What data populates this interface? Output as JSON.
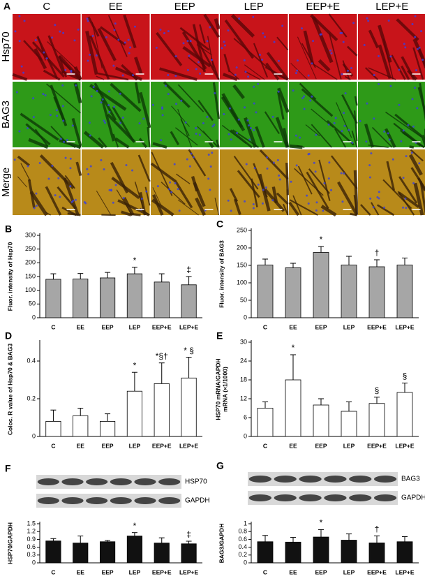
{
  "panel_a": {
    "panel": "A",
    "columns": [
      "C",
      "EE",
      "EEP",
      "LEP",
      "EEP+E",
      "LEP+E"
    ],
    "rows": [
      "Hsp70",
      "BAG3",
      "Merge"
    ]
  },
  "chart_data": [
    {
      "type": "bar",
      "panel": "B",
      "ylabel": [
        "Fluor. intensity of Hsp70"
      ],
      "categories": [
        "C",
        "EE",
        "EEP",
        "LEP",
        "EEP+E",
        "LEP+E"
      ],
      "values": [
        140,
        141,
        145,
        160,
        130,
        120
      ],
      "errors": [
        20,
        20,
        20,
        24,
        30,
        30
      ],
      "value_annotations": [
        null,
        null,
        null,
        "*",
        null,
        "‡"
      ],
      "color": "#a6a6a6",
      "ylim": [
        0,
        300
      ],
      "yticks": [
        0,
        50,
        100,
        150,
        200,
        250,
        300
      ]
    },
    {
      "type": "bar",
      "panel": "C",
      "ylabel": [
        "Fluor. intensity of BAG3"
      ],
      "categories": [
        "C",
        "EE",
        "EEP",
        "LEP",
        "EEP+E",
        "LEP+E"
      ],
      "values": [
        151,
        143,
        187,
        151,
        146,
        151
      ],
      "errors": [
        17,
        13,
        17,
        25,
        20,
        20
      ],
      "value_annotations": [
        null,
        null,
        "*",
        null,
        "†",
        null
      ],
      "color": "#a6a6a6",
      "ylim": [
        0,
        250
      ],
      "yticks": [
        0,
        50,
        100,
        150,
        200,
        250
      ]
    },
    {
      "type": "bar",
      "panel": "D",
      "ylabel": [
        "Coloc. R value of Hsp70 & BAG3"
      ],
      "categories": [
        "C",
        "EE",
        "EEP",
        "LEP",
        "EEP+E",
        "LEP+E"
      ],
      "values": [
        0.08,
        0.11,
        0.08,
        0.24,
        0.28,
        0.31
      ],
      "errors": [
        0.06,
        0.04,
        0.04,
        0.1,
        0.11,
        0.11
      ],
      "value_annotations": [
        null,
        null,
        null,
        "*",
        "*§†",
        "* §"
      ],
      "color": "#ffffff",
      "ylim": [
        0,
        0.5
      ],
      "yticks": [
        0,
        0.2,
        0.4
      ]
    },
    {
      "type": "bar",
      "panel": "E",
      "ylabel": [
        "HSP70 mRNA/GAPDH",
        "mRNA (×1/1000)"
      ],
      "categories": [
        "C",
        "EE",
        "EEP",
        "LEP",
        "EEP+E",
        "LEP+E"
      ],
      "values": [
        9,
        18,
        10,
        8,
        10.5,
        14
      ],
      "errors": [
        2,
        8,
        2,
        3,
        2,
        3
      ],
      "value_annotations": [
        null,
        "*",
        null,
        null,
        "§",
        "§"
      ],
      "color": "#ffffff",
      "ylim": [
        0,
        30
      ],
      "yticks": [
        0,
        6,
        12,
        18,
        24,
        30
      ]
    },
    {
      "type": "bar",
      "panel": "F",
      "blot_labels": [
        "HSP70",
        "GAPDH"
      ],
      "ylabel": [
        "HSP70/GAPDH"
      ],
      "categories": [
        "C",
        "EE",
        "EEP",
        "LEP",
        "EEP+E",
        "LEP+E"
      ],
      "values": [
        0.84,
        0.76,
        0.81,
        1.03,
        0.76,
        0.73
      ],
      "errors": [
        0.09,
        0.27,
        0.05,
        0.13,
        0.2,
        0.1
      ],
      "value_annotations": [
        null,
        null,
        null,
        "*",
        null,
        "‡"
      ],
      "color": "#111111",
      "ylim": [
        0,
        1.5
      ],
      "yticks": [
        0,
        0.3,
        0.6,
        0.9,
        1.2,
        1.5
      ]
    },
    {
      "type": "bar",
      "panel": "G",
      "blot_labels": [
        "BAG3",
        "GAPDH"
      ],
      "ylabel": [
        "BAG3/GAPDH"
      ],
      "categories": [
        "C",
        "EE",
        "EEP",
        "LEP",
        "EEP+E",
        "LEP+E"
      ],
      "values": [
        0.54,
        0.53,
        0.66,
        0.58,
        0.51,
        0.54
      ],
      "errors": [
        0.16,
        0.12,
        0.19,
        0.16,
        0.18,
        0.13
      ],
      "value_annotations": [
        null,
        null,
        "*",
        null,
        "†",
        null
      ],
      "color": "#111111",
      "ylim": [
        0,
        1
      ],
      "yticks": [
        0,
        0.2,
        0.4,
        0.6,
        0.8,
        1
      ]
    }
  ]
}
